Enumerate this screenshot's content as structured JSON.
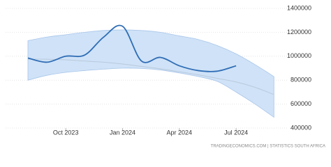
{
  "chart_data": {
    "type": "line",
    "x": [
      "2023-08",
      "2023-09",
      "2023-10",
      "2023-11",
      "2023-12",
      "2024-01",
      "2024-02",
      "2024-03",
      "2024-04",
      "2024-05",
      "2024-06",
      "2024-07"
    ],
    "series": [
      {
        "color": "#2f6db5",
        "values": [
          985000,
          950000,
          1000000,
          1010000,
          1160000,
          1250000,
          960000,
          990000,
          920000,
          880000,
          875000,
          920000
        ]
      }
    ],
    "forecast": {
      "x": [
        "2023-08",
        "2023-09",
        "2023-10",
        "2023-11",
        "2023-12",
        "2024-01",
        "2024-02",
        "2024-03",
        "2024-04",
        "2024-05",
        "2024-06",
        "2024-07",
        "2024-08",
        "2024-09"
      ],
      "upper": [
        1130000,
        1160000,
        1180000,
        1200000,
        1215000,
        1220000,
        1215000,
        1200000,
        1170000,
        1140000,
        1090000,
        1020000,
        930000,
        830000
      ],
      "lower": [
        800000,
        840000,
        865000,
        880000,
        892000,
        900000,
        898000,
        885000,
        860000,
        830000,
        790000,
        700000,
        600000,
        490000
      ],
      "trend": [
        975000,
        975000,
        970000,
        960000,
        950000,
        935000,
        915000,
        895000,
        870000,
        845000,
        815000,
        785000,
        740000,
        680000
      ],
      "band_color": "#cfe2f7",
      "trend_color": "#b9c9dc"
    },
    "ylim": [
      400000,
      1400000
    ],
    "yticks": [
      400000,
      600000,
      800000,
      1000000,
      1200000,
      1400000
    ],
    "xticks": [
      {
        "value": "2023-10",
        "label": "Oct 2023"
      },
      {
        "value": "2024-01",
        "label": "Jan 2024"
      },
      {
        "value": "2024-04",
        "label": "Apr 2024"
      },
      {
        "value": "2024-07",
        "label": "Jul 2024"
      }
    ],
    "grid": true,
    "source": "TRADINGECONOMICS.COM | STATISTICS SOUTH AFRICA"
  }
}
